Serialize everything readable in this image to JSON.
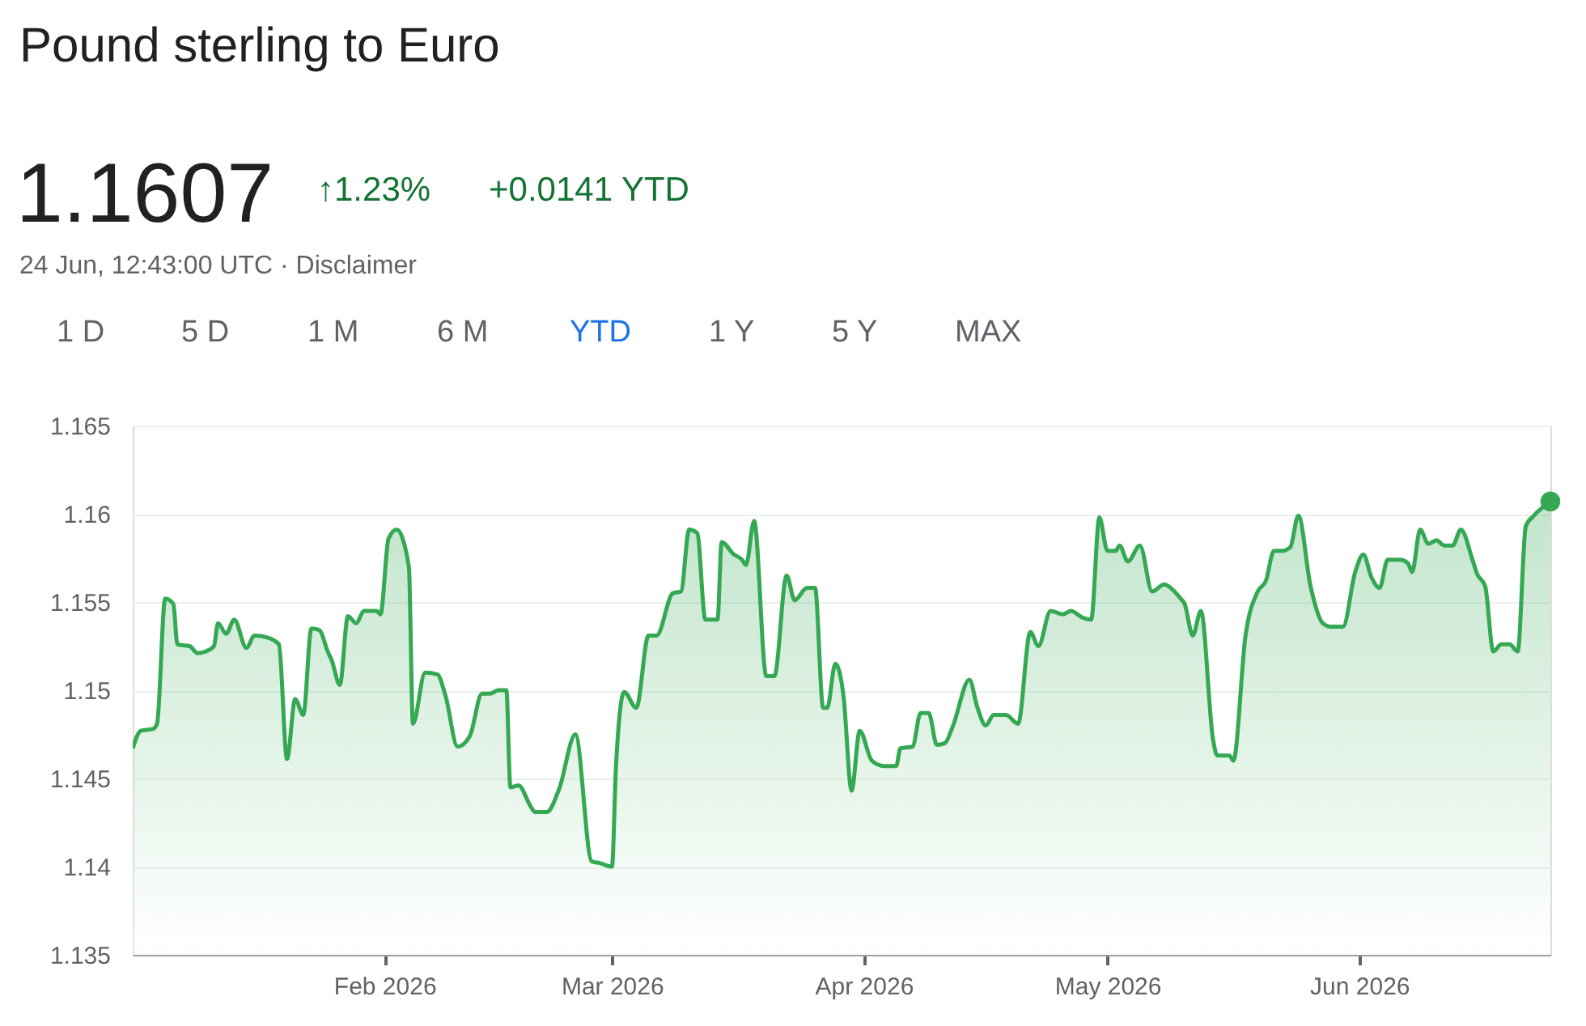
{
  "chart_data": {
    "type": "area",
    "title": "Pound sterling to Euro",
    "annotations": [
      "1.1607",
      "↑1.23%",
      "+0.0141 YTD",
      "24 Jun, 12:43:00 UTC · Disclaimer",
      "1 D",
      "5 D",
      "1 M",
      "6 M",
      "YTD",
      "1 Y",
      "5 Y",
      "MAX"
    ],
    "x": [
      "2026-01-01T00:00",
      "2026-01-02T00:00",
      "2026-01-03T12:00",
      "2026-01-04T00:00",
      "2026-01-05T00:00",
      "2026-01-06T00:00",
      "2026-01-06T12:00",
      "2026-01-08T00:00",
      "2026-01-09T00:00",
      "2026-01-10T00:00",
      "2026-01-11T00:00",
      "2026-01-11T12:00",
      "2026-01-12T12:00",
      "2026-01-13T12:00",
      "2026-01-15T00:00",
      "2026-01-16T00:00",
      "2026-01-17T12:00",
      "2026-01-19T00:00",
      "2026-01-20T00:00",
      "2026-01-21T00:00",
      "2026-01-22T00:00",
      "2026-01-23T00:00",
      "2026-01-24T00:00",
      "2026-01-25T00:00",
      "2026-01-25T12:00",
      "2026-01-26T12:00",
      "2026-01-27T12:00",
      "2026-01-28T12:00",
      "2026-01-29T12:00",
      "2026-01-31T00:00",
      "2026-01-31T12:00",
      "2026-02-01T12:00",
      "2026-02-02T12:00",
      "2026-02-04T00:00",
      "2026-02-04T12:00",
      "2026-02-06T00:00",
      "2026-02-07T12:00",
      "2026-02-08T12:00",
      "2026-02-10T00:00",
      "2026-02-11T12:00",
      "2026-02-13T00:00",
      "2026-02-14T00:00",
      "2026-02-15T00:00",
      "2026-02-16T00:00",
      "2026-02-16T12:00",
      "2026-02-17T12:00",
      "2026-02-19T00:00",
      "2026-02-19T12:00",
      "2026-02-21T00:00",
      "2026-02-22T12:00",
      "2026-02-24T12:00",
      "2026-02-26T12:00",
      "2026-02-27T12:00",
      "2026-03-01T00:00",
      "2026-03-01T12:00",
      "2026-03-02T12:00",
      "2026-03-04T00:00",
      "2026-03-05T12:00",
      "2026-03-06T12:00",
      "2026-03-08T12:00",
      "2026-03-09T12:00",
      "2026-03-10T12:00",
      "2026-03-11T12:00",
      "2026-03-12T12:00",
      "2026-03-14T00:00",
      "2026-03-14T12:00",
      "2026-03-16T00:00",
      "2026-03-17T00:00",
      "2026-03-17T12:00",
      "2026-03-18T12:00",
      "2026-03-20T00:00",
      "2026-03-21T00:00",
      "2026-03-22T12:00",
      "2026-03-23T12:00",
      "2026-03-25T00:00",
      "2026-03-26T00:00",
      "2026-03-27T00:00",
      "2026-03-27T12:00",
      "2026-03-28T12:00",
      "2026-03-29T12:00",
      "2026-03-30T12:00",
      "2026-03-31T12:00",
      "2026-04-02T00:00",
      "2026-04-03T12:00",
      "2026-04-05T00:00",
      "2026-04-05T12:00",
      "2026-04-07T00:00",
      "2026-04-08T00:00",
      "2026-04-09T00:00",
      "2026-04-10T00:00",
      "2026-04-11T00:00",
      "2026-04-12T00:00",
      "2026-04-14T00:00",
      "2026-04-15T00:00",
      "2026-04-16T00:00",
      "2026-04-17T00:00",
      "2026-04-18T12:00",
      "2026-04-20T00:00",
      "2026-04-21T12:00",
      "2026-04-22T12:00",
      "2026-04-24T00:00",
      "2026-04-25T12:00",
      "2026-04-26T12:00",
      "2026-04-28T00:00",
      "2026-04-29T00:00",
      "2026-04-30T00:00",
      "2026-05-01T00:00",
      "2026-05-02T00:00",
      "2026-05-02T12:00",
      "2026-05-03T12:00",
      "2026-05-05T00:00",
      "2026-05-06T12:00",
      "2026-05-08T00:00",
      "2026-05-08T12:00",
      "2026-05-10T00:00",
      "2026-05-10T12:00",
      "2026-05-11T12:00",
      "2026-05-12T12:00",
      "2026-05-14T00:00",
      "2026-05-14T12:00",
      "2026-05-16T00:00",
      "2026-05-16T12:00",
      "2026-05-18T00:00",
      "2026-05-19T12:00",
      "2026-05-20T12:00",
      "2026-05-21T12:00",
      "2026-05-22T12:00",
      "2026-05-23T12:00",
      "2026-05-24T12:00",
      "2026-05-26T00:00",
      "2026-05-27T12:00",
      "2026-05-28T12:00",
      "2026-05-30T00:00",
      "2026-05-31T12:00",
      "2026-06-01T12:00",
      "2026-06-02T12:00",
      "2026-06-03T12:00",
      "2026-06-04T12:00",
      "2026-06-06T00:00",
      "2026-06-07T00:00",
      "2026-06-07T12:00",
      "2026-06-08T12:00",
      "2026-06-09T12:00",
      "2026-06-10T12:00",
      "2026-06-11T12:00",
      "2026-06-12T12:00",
      "2026-06-13T12:00",
      "2026-06-15T00:00",
      "2026-06-15T12:00",
      "2026-06-16T12:00",
      "2026-06-17T12:00",
      "2026-06-18T12:00",
      "2026-06-19T12:00",
      "2026-06-20T12:00",
      "2026-06-21T12:00",
      "2026-06-22T12:00",
      "2026-06-24T12:43"
    ],
    "series": [
      {
        "color": "#34a853",
        "values": [
          1.1467,
          1.1477,
          1.1478,
          1.1481,
          1.1552,
          1.1549,
          1.1526,
          1.1525,
          1.1521,
          1.1522,
          1.1525,
          1.1538,
          1.1532,
          1.154,
          1.1524,
          1.1531,
          1.153,
          1.1526,
          1.1461,
          1.1495,
          1.1486,
          1.1535,
          1.1534,
          1.1522,
          1.1517,
          1.1503,
          1.1542,
          1.1538,
          1.1545,
          1.1545,
          1.1543,
          1.1586,
          1.1591,
          1.157,
          1.1481,
          1.151,
          1.1509,
          1.1497,
          1.1468,
          1.1474,
          1.1498,
          1.1498,
          1.15,
          1.15,
          1.1445,
          1.1446,
          1.1434,
          1.1431,
          1.1431,
          1.1444,
          1.1475,
          1.1403,
          1.1402,
          1.14,
          1.1457,
          1.1499,
          1.149,
          1.1531,
          1.1531,
          1.1555,
          1.1556,
          1.1591,
          1.1589,
          1.154,
          1.154,
          1.1584,
          1.1577,
          1.1574,
          1.1571,
          1.1596,
          1.1508,
          1.1508,
          1.1565,
          1.1551,
          1.1558,
          1.1558,
          1.149,
          1.149,
          1.1515,
          1.1497,
          1.1443,
          1.1477,
          1.146,
          1.1457,
          1.1457,
          1.1467,
          1.1468,
          1.1487,
          1.1487,
          1.1469,
          1.147,
          1.148,
          1.1506,
          1.149,
          1.148,
          1.1486,
          1.1486,
          1.1481,
          1.1533,
          1.1525,
          1.1545,
          1.1543,
          1.1545,
          1.1541,
          1.154,
          1.1598,
          1.1579,
          1.1579,
          1.1582,
          1.1573,
          1.1582,
          1.1556,
          1.156,
          1.1559,
          1.1552,
          1.1549,
          1.1531,
          1.1545,
          1.1472,
          1.1463,
          1.1463,
          1.146,
          1.1531,
          1.1556,
          1.1562,
          1.1579,
          1.1579,
          1.1581,
          1.1599,
          1.1559,
          1.1538,
          1.1536,
          1.1536,
          1.1567,
          1.1577,
          1.1564,
          1.1558,
          1.1574,
          1.1574,
          1.1572,
          1.1567,
          1.1591,
          1.1583,
          1.1585,
          1.1582,
          1.1582,
          1.1591,
          1.1573,
          1.1566,
          1.1559,
          1.1522,
          1.1526,
          1.1526,
          1.1522,
          1.1593,
          1.1599,
          1.1607
        ]
      }
    ],
    "xlim": [
      "2026-01-01T00:00",
      "2026-06-24T12:43"
    ],
    "xticks": [
      {
        "value": "2026-02-01",
        "label": "Feb 2026"
      },
      {
        "value": "2026-03-01",
        "label": "Mar 2026"
      },
      {
        "value": "2026-04-01",
        "label": "Apr 2026"
      },
      {
        "value": "2026-05-01",
        "label": "May 2026"
      },
      {
        "value": "2026-06-01",
        "label": "Jun 2026"
      }
    ],
    "ylim": [
      1.135,
      1.165
    ],
    "yticks": [
      1.135,
      1.14,
      1.145,
      1.15,
      1.155,
      1.16,
      1.165
    ],
    "grid": "y"
  }
}
